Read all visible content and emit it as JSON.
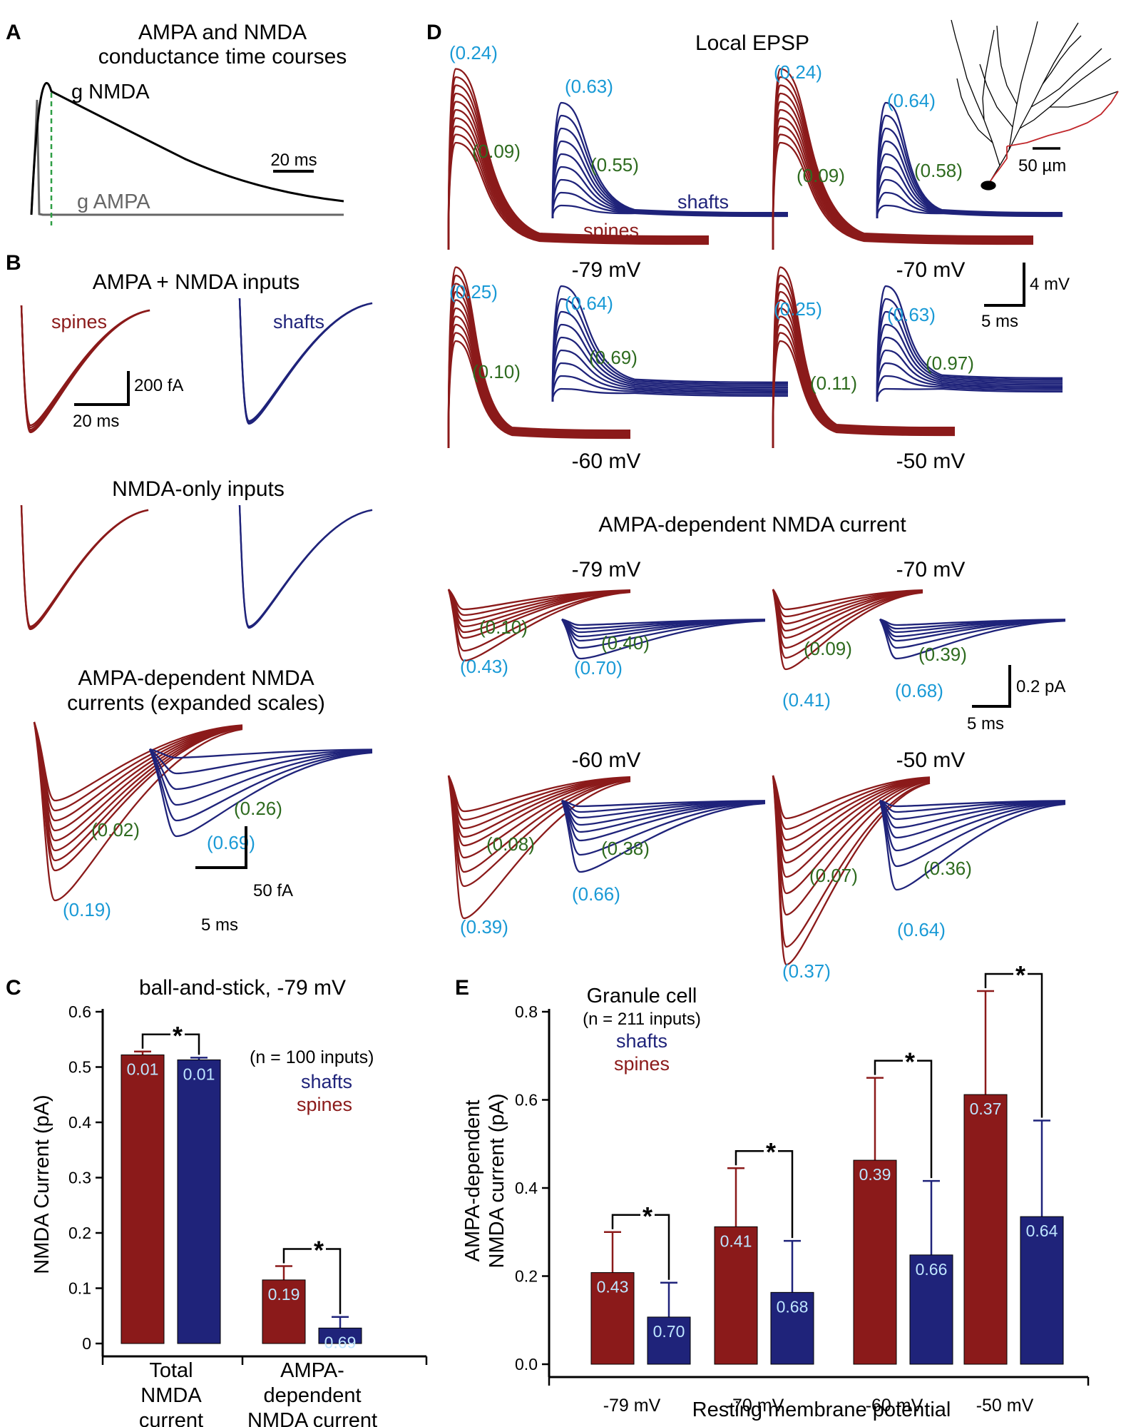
{
  "colors": {
    "spine": "#8b1a1a",
    "shaft": "#1f237a",
    "ratio_blue": "#1a9ad6",
    "ratio_green": "#2e6b1f",
    "grey": "#666666",
    "dash": "#2e9e44"
  },
  "panels": {
    "A": "A",
    "B": "B",
    "C": "C",
    "D": "D",
    "E": "E"
  },
  "a": {
    "title1": "AMPA and NMDA",
    "title2": "conductance time courses",
    "g_nmda": "g NMDA",
    "g_ampa": "g AMPA",
    "scale": "20 ms"
  },
  "b": {
    "t1": "AMPA + NMDA inputs",
    "spines": "spines",
    "shafts": "shafts",
    "scale_y": "200 fA",
    "scale_x": "20 ms",
    "t2": "NMDA-only inputs",
    "t3a": "AMPA-dependent NMDA",
    "t3b": "currents (expanded scales)",
    "g_sp": "(0.02)",
    "b_sp": "(0.19)",
    "g_sh": "(0.26)",
    "b_sh": "(0.69)",
    "scale2_y": "50 fA",
    "scale2_x": "5 ms"
  },
  "d": {
    "title": "Local EPSP",
    "shafts": "shafts",
    "spines": "spines",
    "scale_bar": "50 µm",
    "scale_y": "4 mV",
    "scale_x": "5 ms",
    "epsp": [
      {
        "v": "-79 mV",
        "sb": "(0.24)",
        "sg": "(0.09)",
        "hb": "(0.63)",
        "hg": "(0.55)"
      },
      {
        "v": "-70 mV",
        "sb": "(0.24)",
        "sg": "(0.09)",
        "hb": "(0.64)",
        "hg": "(0.58)"
      },
      {
        "v": "-60 mV",
        "sb": "(0.25)",
        "sg": "(0.10)",
        "hb": "(0.64)",
        "hg": "(0.69)"
      },
      {
        "v": "-50 mV",
        "sb": "(0.25)",
        "sg": "(0.11)",
        "hb": "(0.63)",
        "hg": "(0.97)"
      }
    ],
    "title2": "AMPA-dependent NMDA current",
    "scale2_y": "0.2 pA",
    "scale2_x": "5 ms",
    "cur": [
      {
        "v": "-79 mV",
        "sb": "(0.43)",
        "sg": "(0.10)",
        "hb": "(0.70)",
        "hg": "(0.40)"
      },
      {
        "v": "-70 mV",
        "sb": "(0.41)",
        "sg": "(0.09)",
        "hb": "(0.68)",
        "hg": "(0.39)"
      },
      {
        "v": "-60 mV",
        "sb": "(0.39)",
        "sg": "(0.08)",
        "hb": "(0.66)",
        "hg": "(0.38)"
      },
      {
        "v": "-50 mV",
        "sb": "(0.37)",
        "sg": "(0.07)",
        "hb": "(0.64)",
        "hg": "(0.36)"
      }
    ]
  },
  "c": {
    "title": "ball-and-stick, -79 mV",
    "n": "(n = 100 inputs)",
    "shafts": "shafts",
    "spines": "spines",
    "ylabel": "NMDA Current (pA)",
    "star": "*",
    "cat1": [
      "Total",
      "NMDA",
      "current"
    ],
    "cat2": [
      "AMPA-",
      "dependent",
      "NMDA current"
    ]
  },
  "e": {
    "title": "Granule cell",
    "n": "(n = 211 inputs)",
    "shafts": "shafts",
    "spines": "spines",
    "ylabel1": "AMPA-dependent",
    "ylabel2": "NMDA current (pA)",
    "xlabel": "Resting membrane potential",
    "star": "*"
  },
  "chart_data": [
    {
      "type": "bar",
      "panel": "C",
      "title": "ball-and-stick, -79 mV",
      "ylabel": "NMDA Current (pA)",
      "ylim": [
        0,
        0.6
      ],
      "yticks": [
        0,
        0.1,
        0.2,
        0.3,
        0.4,
        0.5,
        0.6
      ],
      "ytick_labels": [
        "0",
        "0.1",
        "0.2",
        "0.3",
        "0.4",
        "0.5",
        "0.6"
      ],
      "categories": [
        "Total NMDA current",
        "AMPA-dependent NMDA current"
      ],
      "series": [
        {
          "name": "spines",
          "values": [
            0.522,
            0.115
          ],
          "errors": [
            0.006,
            0.025
          ],
          "labels": [
            "0.01",
            "0.19"
          ]
        },
        {
          "name": "shafts",
          "values": [
            0.513,
            0.028
          ],
          "errors": [
            0.004,
            0.02
          ],
          "labels": [
            "0.01",
            "0.69"
          ]
        }
      ]
    },
    {
      "type": "bar",
      "panel": "E",
      "title": "Granule cell",
      "ylabel": "AMPA-dependent NMDA current (pA)",
      "xlabel": "Resting membrane potential",
      "ylim": [
        0,
        0.8
      ],
      "yticks": [
        0,
        0.2,
        0.4,
        0.6,
        0.8
      ],
      "ytick_labels": [
        "0.0",
        "0.2",
        "0.4",
        "0.6",
        "0.8"
      ],
      "categories": [
        "-79 mV",
        "-70 mV",
        "-60 mV",
        "-50 mV"
      ],
      "series": [
        {
          "name": "spines",
          "values": [
            0.208,
            0.312,
            0.463,
            0.612
          ],
          "errors": [
            0.092,
            0.133,
            0.187,
            0.235
          ],
          "labels": [
            "0.43",
            "0.41",
            "0.39",
            "0.37"
          ]
        },
        {
          "name": "shafts",
          "values": [
            0.107,
            0.163,
            0.248,
            0.335
          ],
          "errors": [
            0.078,
            0.117,
            0.168,
            0.218
          ],
          "labels": [
            "0.70",
            "0.68",
            "0.66",
            "0.64"
          ]
        }
      ]
    }
  ]
}
